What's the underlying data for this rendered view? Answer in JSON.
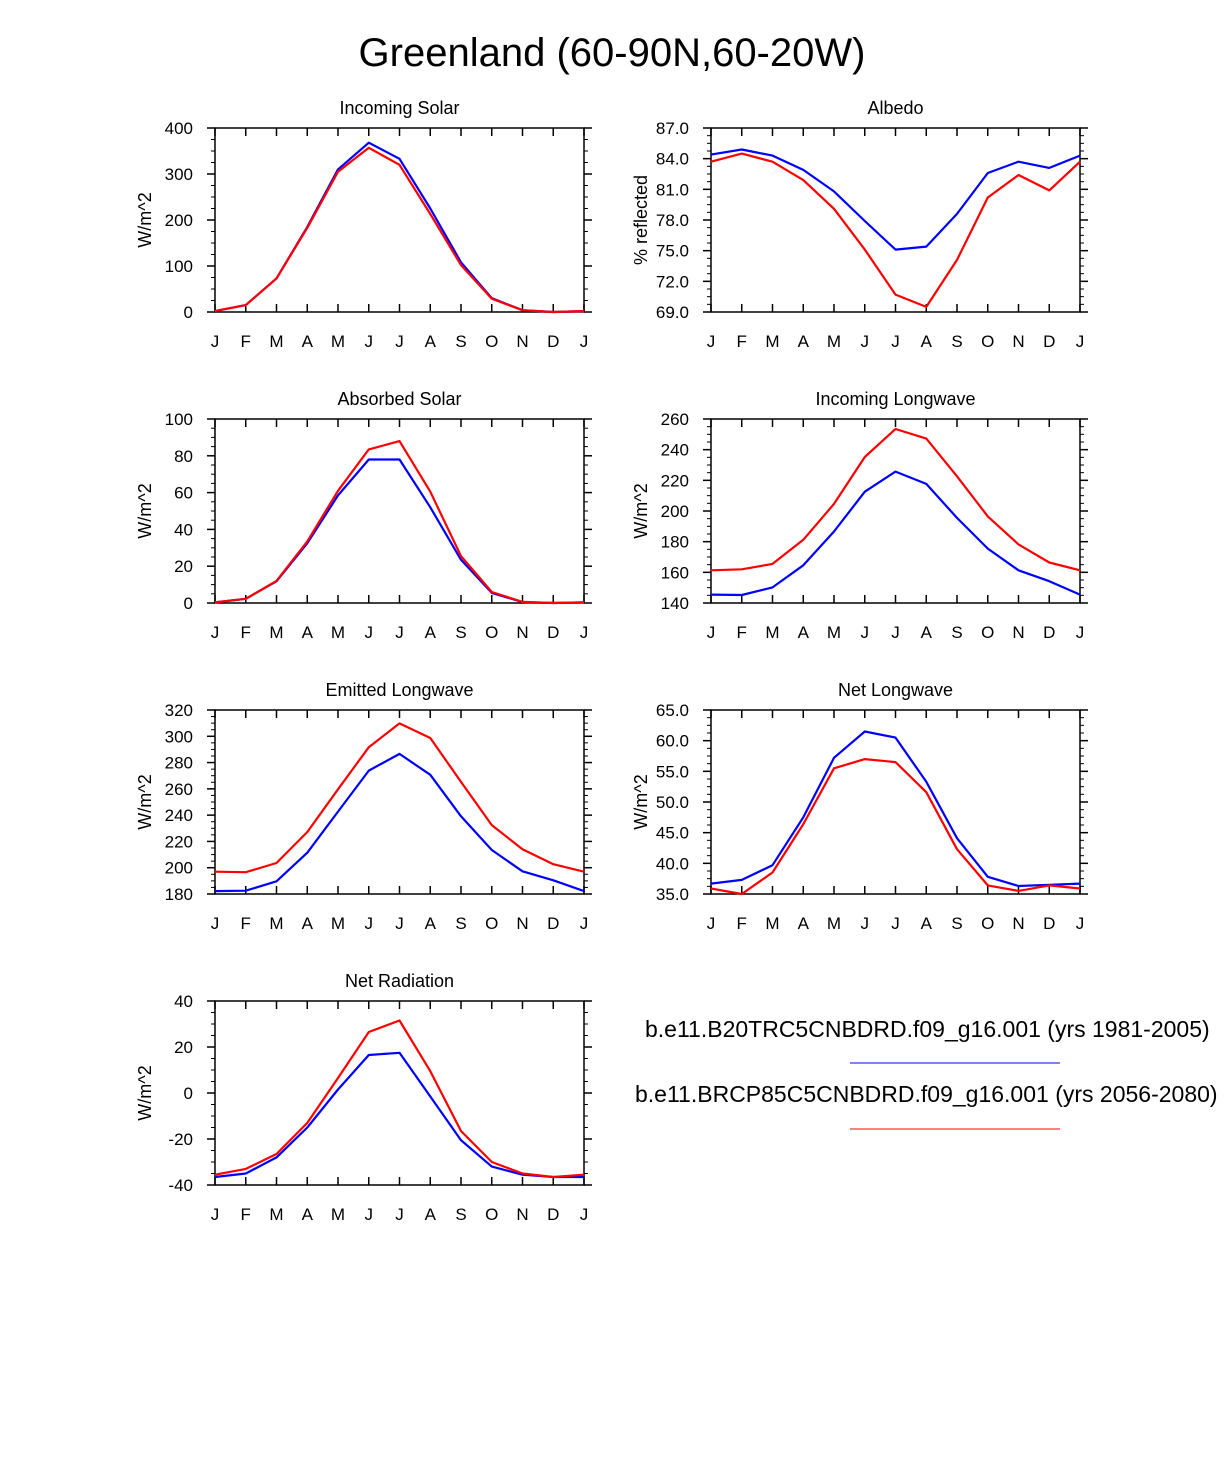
{
  "title": "Greenland (60-90N,60-20W)",
  "colors": {
    "baseline": "#0000ff",
    "future": "#ff0000",
    "axis": "#000000"
  },
  "legend": [
    {
      "label": "b.e11.B20TRC5CNBDRD.f09_g16.001 (yrs 1981-2005)",
      "color": "#0000ff"
    },
    {
      "label": "b.e11.BRCP85C5CNBDRD.f09_g16.001 (yrs 2056-2080)",
      "color": "#ff0000"
    }
  ],
  "chart_data": [
    {
      "type": "line",
      "title": "Incoming Solar",
      "xlabel": "",
      "ylabel": "W/m^2",
      "categories": [
        "J",
        "F",
        "M",
        "A",
        "M",
        "J",
        "J",
        "A",
        "S",
        "O",
        "N",
        "D",
        "J"
      ],
      "ylim": [
        0,
        400
      ],
      "yticks": [
        "0",
        "100",
        "200",
        "300",
        "400"
      ],
      "series": [
        {
          "name": "b.e11.B20TRC5CNBDRD.f09_g16.001 (yrs 1981-2005)",
          "color": "#0000ff",
          "values": [
            2,
            15,
            73,
            185,
            310,
            368,
            333,
            225,
            108,
            30,
            4,
            0,
            2
          ]
        },
        {
          "name": "b.e11.BRCP85C5CNBDRD.f09_g16.001 (yrs 2056-2080)",
          "color": "#ff0000",
          "values": [
            2,
            15,
            73,
            183,
            305,
            357,
            320,
            213,
            102,
            29,
            4,
            0,
            2
          ]
        }
      ]
    },
    {
      "type": "line",
      "title": "Albedo",
      "xlabel": "",
      "ylabel": "% reflected",
      "categories": [
        "J",
        "F",
        "M",
        "A",
        "M",
        "J",
        "J",
        "A",
        "S",
        "O",
        "N",
        "D",
        "J"
      ],
      "ylim": [
        69,
        87
      ],
      "yticks": [
        "69.0",
        "72.0",
        "75.0",
        "78.0",
        "81.0",
        "84.0",
        "87.0"
      ],
      "series": [
        {
          "name": "b.e11.B20TRC5CNBDRD.f09_g16.001 (yrs 1981-2005)",
          "color": "#0000ff",
          "values": [
            84.4,
            84.9,
            84.3,
            82.9,
            80.8,
            77.9,
            75.1,
            75.4,
            78.6,
            82.6,
            83.7,
            83.1,
            84.3
          ]
        },
        {
          "name": "b.e11.BRCP85C5CNBDRD.f09_g16.001 (yrs 2056-2080)",
          "color": "#ff0000",
          "values": [
            83.7,
            84.5,
            83.7,
            81.9,
            79.1,
            75.1,
            70.7,
            69.5,
            74.1,
            80.2,
            82.4,
            80.9,
            83.7
          ]
        }
      ]
    },
    {
      "type": "line",
      "title": "Absorbed Solar",
      "xlabel": "",
      "ylabel": "W/m^2",
      "categories": [
        "J",
        "F",
        "M",
        "A",
        "M",
        "J",
        "J",
        "A",
        "S",
        "O",
        "N",
        "D",
        "J"
      ],
      "ylim": [
        0,
        100
      ],
      "yticks": [
        "0",
        "20",
        "40",
        "60",
        "80",
        "100"
      ],
      "series": [
        {
          "name": "b.e11.B20TRC5CNBDRD.f09_g16.001 (yrs 1981-2005)",
          "color": "#0000ff",
          "values": [
            0.3,
            2.3,
            11.8,
            32.5,
            58.5,
            78,
            78,
            52,
            23.5,
            5.5,
            0.5,
            0,
            0.3
          ]
        },
        {
          "name": "b.e11.BRCP85C5CNBDRD.f09_g16.001 (yrs 2056-2080)",
          "color": "#ff0000",
          "values": [
            0.3,
            2.3,
            12,
            33.5,
            61,
            83.5,
            88,
            60.5,
            25.5,
            6,
            0.6,
            0,
            0.3
          ]
        }
      ]
    },
    {
      "type": "line",
      "title": "Incoming Longwave",
      "xlabel": "",
      "ylabel": "W/m^2",
      "categories": [
        "J",
        "F",
        "M",
        "A",
        "M",
        "J",
        "J",
        "A",
        "S",
        "O",
        "N",
        "D",
        "J"
      ],
      "ylim": [
        140,
        260
      ],
      "yticks": [
        "140",
        "160",
        "180",
        "200",
        "220",
        "240",
        "260"
      ],
      "series": [
        {
          "name": "b.e11.B20TRC5CNBDRD.f09_g16.001 (yrs 1981-2005)",
          "color": "#0000ff",
          "values": [
            145.5,
            145.2,
            150.2,
            164.6,
            186.6,
            212.6,
            225.7,
            217.7,
            195.5,
            175.5,
            161.3,
            154.2,
            145.5
          ]
        },
        {
          "name": "b.e11.BRCP85C5CNBDRD.f09_g16.001 (yrs 2056-2080)",
          "color": "#ff0000",
          "values": [
            161.3,
            162,
            165.5,
            181.2,
            204.6,
            235.2,
            253.5,
            247.2,
            222.6,
            196.5,
            178.2,
            166.4,
            161.3
          ]
        }
      ]
    },
    {
      "type": "line",
      "title": "Emitted Longwave",
      "xlabel": "",
      "ylabel": "W/m^2",
      "categories": [
        "J",
        "F",
        "M",
        "A",
        "M",
        "J",
        "J",
        "A",
        "S",
        "O",
        "N",
        "D",
        "J"
      ],
      "ylim": [
        180,
        320
      ],
      "yticks": [
        "180",
        "200",
        "220",
        "240",
        "260",
        "280",
        "300",
        "320"
      ],
      "series": [
        {
          "name": "b.e11.B20TRC5CNBDRD.f09_g16.001 (yrs 1981-2005)",
          "color": "#0000ff",
          "values": [
            182.2,
            182.5,
            189.7,
            211.4,
            242.7,
            273.9,
            286.6,
            270.7,
            239.1,
            213.5,
            197.3,
            190.4,
            182.2
          ]
        },
        {
          "name": "b.e11.BRCP85C5CNBDRD.f09_g16.001 (yrs 2056-2080)",
          "color": "#ff0000",
          "values": [
            197,
            196.6,
            203.6,
            227.2,
            259.7,
            291.7,
            309.8,
            298.7,
            265.3,
            232.4,
            214,
            202.7,
            197
          ]
        }
      ]
    },
    {
      "type": "line",
      "title": "Net Longwave",
      "xlabel": "",
      "ylabel": "W/m^2",
      "categories": [
        "J",
        "F",
        "M",
        "A",
        "M",
        "J",
        "J",
        "A",
        "S",
        "O",
        "N",
        "D",
        "J"
      ],
      "ylim": [
        35,
        65
      ],
      "yticks": [
        "35.0",
        "40.0",
        "45.0",
        "50.0",
        "55.0",
        "60.0",
        "65.0"
      ],
      "series": [
        {
          "name": "b.e11.B20TRC5CNBDRD.f09_g16.001 (yrs 1981-2005)",
          "color": "#0000ff",
          "values": [
            36.7,
            37.3,
            39.7,
            47.5,
            57.2,
            61.5,
            60.5,
            53.3,
            44.1,
            37.8,
            36.3,
            36.5,
            36.7
          ]
        },
        {
          "name": "b.e11.BRCP85C5CNBDRD.f09_g16.001 (yrs 2056-2080)",
          "color": "#ff0000",
          "values": [
            35.9,
            35,
            38.5,
            46.4,
            55.5,
            57,
            56.5,
            51.6,
            42.3,
            36.4,
            35.5,
            36.4,
            35.9
          ]
        }
      ]
    },
    {
      "type": "line",
      "title": "Net Radiation",
      "xlabel": "",
      "ylabel": "W/m^2",
      "categories": [
        "J",
        "F",
        "M",
        "A",
        "M",
        "J",
        "J",
        "A",
        "S",
        "O",
        "N",
        "D",
        "J"
      ],
      "ylim": [
        -40,
        40
      ],
      "yticks": [
        "-40",
        "-20",
        "0",
        "20",
        "40"
      ],
      "series": [
        {
          "name": "b.e11.B20TRC5CNBDRD.f09_g16.001 (yrs 1981-2005)",
          "color": "#0000ff",
          "values": [
            -36.5,
            -35,
            -28,
            -15,
            1.5,
            16.5,
            17.5,
            -1.5,
            -20.5,
            -32,
            -35.5,
            -36.5,
            -36.5
          ]
        },
        {
          "name": "b.e11.BRCP85C5CNBDRD.f09_g16.001 (yrs 2056-2080)",
          "color": "#ff0000",
          "values": [
            -35.5,
            -33,
            -26.5,
            -13,
            6.5,
            26.5,
            31.5,
            9.5,
            -16.5,
            -30,
            -35,
            -36.5,
            -35.5
          ]
        }
      ]
    }
  ]
}
